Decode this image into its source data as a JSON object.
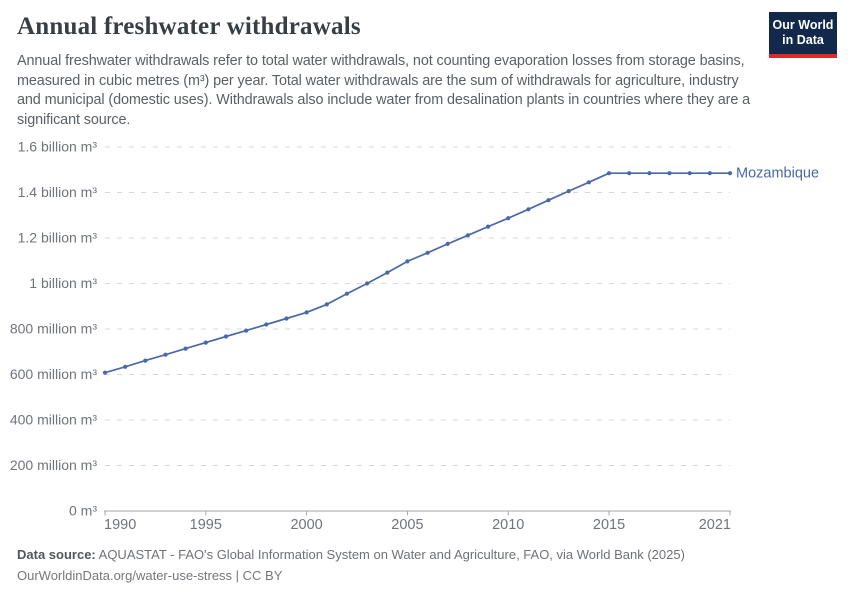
{
  "header": {
    "title": "Annual freshwater withdrawals",
    "logo": {
      "line1": "Our World",
      "line2": "in Data"
    }
  },
  "subtitle": "Annual freshwater withdrawals refer to total water withdrawals, not counting evaporation losses from storage basins, measured in cubic metres (m³) per year. Total water withdrawals are the sum of withdrawals for agriculture, industry and municipal (domestic uses). Withdrawals also include water from desalination plants in countries where they are a significant source.",
  "chart_data": {
    "type": "line",
    "title": "Annual freshwater withdrawals",
    "entity": "Mozambique",
    "unit": "cubic metres (m³) per year",
    "values_unit": "million m³",
    "x": [
      1990,
      1991,
      1992,
      1993,
      1994,
      1995,
      1996,
      1997,
      1998,
      1999,
      2000,
      2001,
      2002,
      2003,
      2004,
      2005,
      2006,
      2007,
      2008,
      2009,
      2010,
      2011,
      2012,
      2013,
      2014,
      2015,
      2016,
      2017,
      2018,
      2019,
      2020,
      2021
    ],
    "series": [
      {
        "name": "Mozambique",
        "color": "#4a68a8",
        "values": [
          608,
          634,
          661,
          687,
          714,
          740,
          767,
          793,
          820,
          846,
          873,
          908,
          955,
          1000,
          1048,
          1097,
          1135,
          1174,
          1212,
          1250,
          1287,
          1326,
          1366,
          1406,
          1445,
          1485,
          1485,
          1485,
          1485,
          1485,
          1485,
          1485
        ]
      }
    ],
    "x_ticks": [
      1990,
      1995,
      2000,
      2005,
      2010,
      2015,
      2021
    ],
    "y_ticks": [
      {
        "value": 0,
        "label": "0 m³"
      },
      {
        "value": 200,
        "label": "200 million m³"
      },
      {
        "value": 400,
        "label": "400 million m³"
      },
      {
        "value": 600,
        "label": "600 million m³"
      },
      {
        "value": 800,
        "label": "800 million m³"
      },
      {
        "value": 1000,
        "label": "1 billion m³"
      },
      {
        "value": 1200,
        "label": "1.2 billion m³"
      },
      {
        "value": 1400,
        "label": "1.4 billion m³"
      },
      {
        "value": 1600,
        "label": "1.6 billion m³"
      }
    ],
    "ylim": [
      0,
      1600
    ],
    "xlim": [
      1990,
      2021
    ],
    "grid": "horizontal-dashed",
    "legend_position": "end-of-line-label"
  },
  "footer": {
    "source_label": "Data source:",
    "source_text": " AQUASTAT - FAO's Global Information System on Water and Agriculture, FAO, via World Bank (2025)",
    "license_line": "OurWorldinData.org/water-use-stress | CC BY"
  },
  "colors": {
    "line": "#4a68a8",
    "grid": "#d7d9dd",
    "axis": "#a3a7ad",
    "tick_text": "#70747b",
    "entity_label": "#4a68a8",
    "logo_bg": "#12294b",
    "logo_red": "#dd2a2a"
  }
}
